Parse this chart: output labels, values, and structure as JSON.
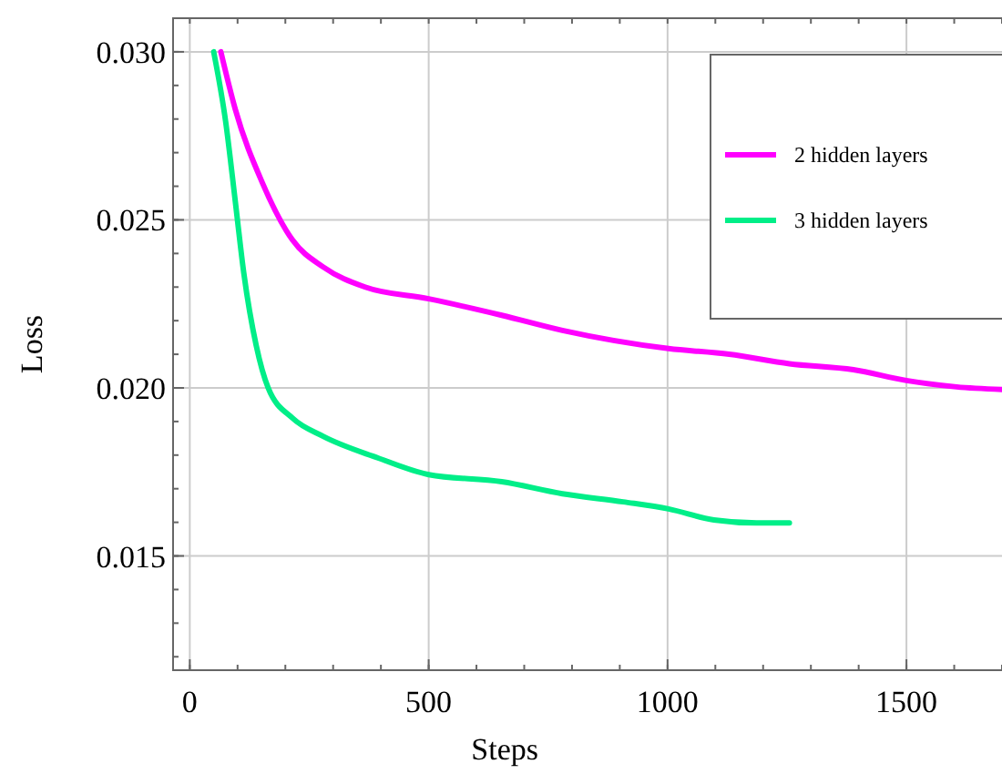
{
  "chart_data": {
    "type": "line",
    "xlabel": "Steps",
    "ylabel": "Loss",
    "xlim": [
      -35,
      1700
    ],
    "ylim": [
      0.0116,
      0.031
    ],
    "xticks": [
      0,
      500,
      1000,
      1500
    ],
    "yticks": [
      {
        "value": 0.015,
        "label": "0.015"
      },
      {
        "value": 0.02,
        "label": "0.020"
      },
      {
        "value": 0.025,
        "label": "0.025"
      },
      {
        "value": 0.03,
        "label": "0.030"
      }
    ],
    "grid": true,
    "legend": "top right",
    "line_style": "solid",
    "marker": "none",
    "series": [
      {
        "name": "2 hidden layers",
        "color": "#ff00ff",
        "x": [
          65,
          95,
          152,
          215,
          279,
          367,
          500,
          653,
          780,
          1002,
          1129,
          1255,
          1389,
          1500,
          1605,
          1700
        ],
        "values": [
          0.03,
          0.0283,
          0.0261,
          0.0244,
          0.0236,
          0.023,
          0.02265,
          0.02216,
          0.02171,
          0.02117,
          0.021,
          0.02072,
          0.02054,
          0.02022,
          0.02003,
          0.01995
        ]
      },
      {
        "name": "3 hidden layers",
        "color": "#00ee88",
        "x": [
          50,
          75,
          95,
          113,
          139,
          164,
          215,
          279,
          393,
          500,
          653,
          780,
          907,
          1002,
          1097,
          1186,
          1255
        ],
        "values": [
          0.03,
          0.02793,
          0.02558,
          0.02342,
          0.02126,
          0.02,
          0.0191,
          0.01856,
          0.01792,
          0.01742,
          0.01721,
          0.01685,
          0.01661,
          0.0164,
          0.01607,
          0.01598,
          0.01598
        ]
      }
    ]
  }
}
